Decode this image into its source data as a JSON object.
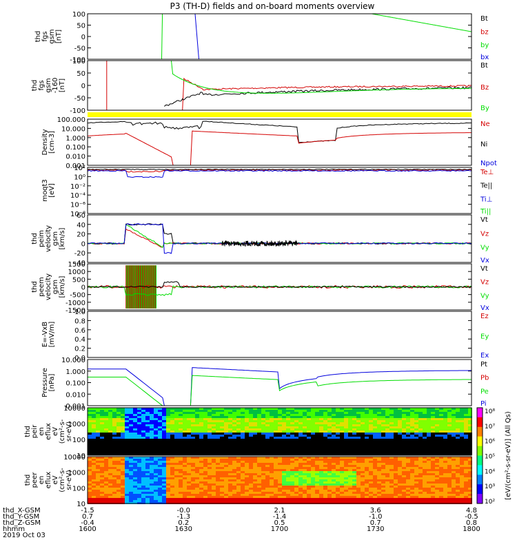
{
  "title": "P3 (TH-D) fields and on-board moments overview",
  "colors": {
    "black": "#000000",
    "red": "#d40000",
    "green": "#00dd00",
    "blue": "#0000dd",
    "yellow": "#ffff00"
  },
  "chart_data": {
    "type": "line",
    "panels": [
      {
        "ylabel": [
          "thd",
          "fgs",
          "gsm",
          "[nT]"
        ],
        "yticks": [
          "100",
          "50",
          "0",
          "-50",
          "-100"
        ],
        "legend": [
          {
            "name": "Bt",
            "color": "black"
          },
          {
            "name": "bz",
            "color": "red"
          },
          {
            "name": "by",
            "color": "green"
          },
          {
            "name": "bx",
            "color": "blue"
          }
        ]
      },
      {
        "ylabel": [
          "thd",
          "fgs",
          "gsm",
          "-160",
          "[nT]"
        ],
        "yticks": [
          "100",
          "50",
          "0",
          "-50",
          "-100"
        ],
        "legend": [
          {
            "name": "Bt",
            "color": "black"
          },
          {
            "name": "Bz",
            "color": "red"
          },
          {
            "name": "By",
            "color": "green"
          }
        ]
      },
      {
        "ylabel": [
          "Density",
          "[cm-3]"
        ],
        "yticks": [
          "100.000",
          "10.000",
          "1.000",
          "0.100",
          "0.010",
          "0.001"
        ],
        "legend": [
          {
            "name": "Ne",
            "color": "red"
          },
          {
            "name": "Ni",
            "color": "black"
          },
          {
            "name": "Npot",
            "color": "blue"
          }
        ]
      },
      {
        "ylabel": [
          "moqt3",
          "[eV]"
        ],
        "yticks": [
          "10²",
          "10⁰",
          "10⁻²",
          "10⁻⁴",
          "10⁻⁶",
          "10⁻⁸"
        ],
        "legend": [
          {
            "name": "Te⊥",
            "color": "red"
          },
          {
            "name": "Te||",
            "color": "black"
          },
          {
            "name": "Ti⊥",
            "color": "blue"
          },
          {
            "name": "Ti||",
            "color": "green"
          }
        ]
      },
      {
        "ylabel": [
          "thd",
          "peim",
          "velocity",
          "gsm",
          "[km/s]"
        ],
        "yticks": [
          "60",
          "40",
          "20",
          "0",
          "-20",
          "-40"
        ],
        "legend": [
          {
            "name": "Vt",
            "color": "black"
          },
          {
            "name": "Vz",
            "color": "red"
          },
          {
            "name": "Vy",
            "color": "green"
          },
          {
            "name": "Vx",
            "color": "blue"
          }
        ]
      },
      {
        "ylabel": [
          "thd",
          "peem",
          "velocity",
          "gsm",
          "[km/s]"
        ],
        "yticks": [
          "1500",
          "1000",
          "500",
          "0",
          "-500",
          "-1000",
          "-1500"
        ],
        "legend": [
          {
            "name": "Vt",
            "color": "black"
          },
          {
            "name": "Vz",
            "color": "red"
          },
          {
            "name": "Vy",
            "color": "green"
          },
          {
            "name": "Vx",
            "color": "blue"
          }
        ]
      },
      {
        "ylabel": [
          "E=-VxB",
          "[mV/m]"
        ],
        "yticks": [
          "1.0",
          "0.8",
          "0.6",
          "0.4",
          "0.2",
          "0.0"
        ],
        "legend": [
          {
            "name": "Ez",
            "color": "red"
          },
          {
            "name": "Ey",
            "color": "green"
          },
          {
            "name": "Ex",
            "color": "blue"
          }
        ]
      },
      {
        "ylabel": [
          "Pressure",
          "[nPa]"
        ],
        "yticks": [
          "10.000",
          "1.000",
          "0.100",
          "0.010",
          "0.001"
        ],
        "legend": [
          {
            "name": "Pt",
            "color": "black"
          },
          {
            "name": "Pb",
            "color": "red"
          },
          {
            "name": "Pe",
            "color": "green"
          },
          {
            "name": "Pi",
            "color": "blue"
          }
        ]
      },
      {
        "ylabel": [
          "thd",
          "peir",
          "en",
          "eflux",
          "eV",
          "(cm²-s-",
          "sr-eV)"
        ],
        "yticks": [
          "10000",
          "1000",
          "100",
          "10"
        ],
        "legend": []
      },
      {
        "ylabel": [
          "thd",
          "peer",
          "en",
          "eflux",
          "eV",
          "(cm²-s-",
          "sr-eV)"
        ],
        "yticks": [
          "10000",
          "1000",
          "100",
          "10"
        ],
        "legend": []
      }
    ],
    "colorbar": {
      "label": "[eV/(cm²-s-sr-eV)] (All Qs)",
      "ticks": [
        "10⁸",
        "10⁷",
        "10⁶",
        "10⁵",
        "10⁴",
        "10³",
        "10²"
      ]
    },
    "xaxis": {
      "rows": [
        {
          "label": "thd_X-GSM",
          "values": [
            "-1.5",
            "-0.0",
            "2.1",
            "3.6",
            "4.8"
          ]
        },
        {
          "label": "thd_Y-GSM",
          "values": [
            "0.7",
            "-1.3",
            "-1.4",
            "-1.0",
            "-0.5"
          ]
        },
        {
          "label": "thd_Z-GSM",
          "values": [
            "-0.4",
            "0.2",
            "0.5",
            "0.7",
            "0.8"
          ]
        },
        {
          "label": "hhmm",
          "values": [
            "1600",
            "1630",
            "1700",
            "1730",
            "1800"
          ]
        }
      ],
      "date": "2019 Oct 03"
    }
  }
}
